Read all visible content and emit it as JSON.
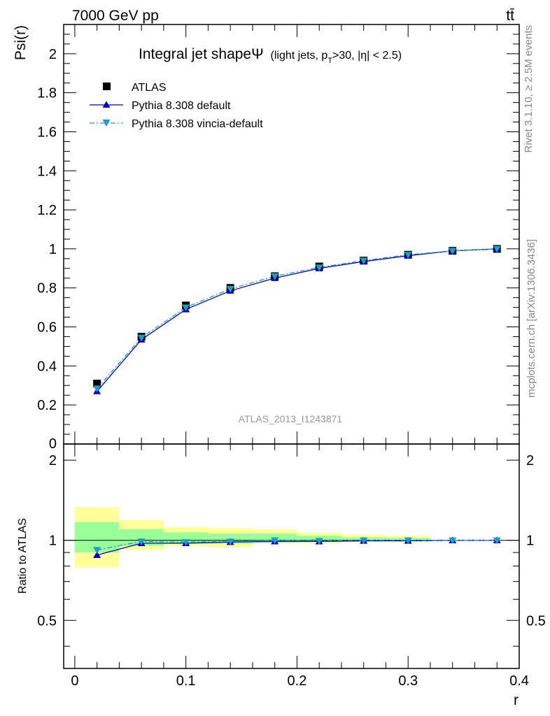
{
  "header": {
    "energy_label": "7000 GeV pp",
    "process_label": "tt̄"
  },
  "side_labels": {
    "rivet": "Rivet 3.1.10, ≥ 2.5M events",
    "mcplots": "mcplots.cern.ch [arXiv:1306.3436]"
  },
  "watermark": "ATLAS_2013_I1243871",
  "chart_data": [
    {
      "type": "scatter",
      "panel": "main",
      "title": "Integral jet shape",
      "title_symbol": "Ψ",
      "title_sub": {
        "a": "(light jets, p",
        "b": "T",
        "c": ">30, |η| < 2.5)"
      },
      "ylabel": "Psi(r)",
      "xlim": [
        -0.01,
        0.4
      ],
      "ylim": [
        0,
        2.15
      ],
      "yticks": [
        0.2,
        0.4,
        0.6,
        0.8,
        1,
        1.2,
        1.4,
        1.6,
        1.8,
        2
      ],
      "ytick_labels": [
        "0.2",
        "0.4",
        "0.6",
        "0.8",
        "1",
        "1.2",
        "1.4",
        "1.6",
        "1.8",
        "2"
      ],
      "ylabel_zero": "0",
      "legend": {
        "placement": "top-left",
        "entries": [
          "ATLAS",
          "Pythia 8.308 default",
          "Pythia 8.308 vincia-default"
        ]
      },
      "x": [
        0.02,
        0.06,
        0.1,
        0.14,
        0.18,
        0.22,
        0.26,
        0.3,
        0.34,
        0.38
      ],
      "series": [
        {
          "name": "ATLAS",
          "marker": "square",
          "color": "#000000",
          "values": [
            0.31,
            0.55,
            0.71,
            0.8,
            0.86,
            0.91,
            0.94,
            0.97,
            0.99,
            1.0
          ]
        },
        {
          "name": "Pythia 8.308 default",
          "marker": "triangle-up",
          "line": "solid",
          "color": "#0000cc",
          "values": [
            0.27,
            0.535,
            0.69,
            0.785,
            0.85,
            0.9,
            0.935,
            0.965,
            0.99,
            1.0
          ]
        },
        {
          "name": "Pythia 8.308 vincia-default",
          "marker": "triangle-down",
          "line": "dashdot",
          "color": "#1a9ec2",
          "values": [
            0.285,
            0.545,
            0.7,
            0.795,
            0.86,
            0.905,
            0.94,
            0.97,
            0.99,
            1.0
          ]
        }
      ]
    },
    {
      "type": "scatter",
      "panel": "ratio",
      "ylabel": "Ratio to ATLAS",
      "xlabel": "r",
      "xlim": [
        -0.01,
        0.4
      ],
      "ylim": [
        0.33,
        2.3
      ],
      "xticks": [
        0,
        0.1,
        0.2,
        0.3,
        0.4
      ],
      "xtick_labels": [
        "0",
        "0.1",
        "0.2",
        "0.3",
        "0.4"
      ],
      "yticks": [
        0.5,
        1,
        2
      ],
      "ytick_labels": [
        "0.5",
        "1",
        "2"
      ],
      "bands": {
        "x_edges": [
          0.0,
          0.04,
          0.08,
          0.12,
          0.16,
          0.2,
          0.24,
          0.28,
          0.32
        ],
        "yellow": [
          [
            0.79,
            1.33
          ],
          [
            0.92,
            1.19
          ],
          [
            0.95,
            1.12
          ],
          [
            0.94,
            1.11
          ],
          [
            0.97,
            1.1
          ],
          [
            0.97,
            1.07
          ],
          [
            0.985,
            1.05
          ],
          [
            0.985,
            1.04
          ]
        ],
        "green": [
          [
            0.9,
            1.17
          ],
          [
            0.955,
            1.1
          ],
          [
            0.97,
            1.07
          ],
          [
            0.97,
            1.06
          ],
          [
            0.98,
            1.06
          ],
          [
            0.985,
            1.04
          ],
          [
            0.99,
            1.025
          ],
          [
            0.99,
            1.02
          ]
        ],
        "colors": {
          "yellow": "#ffff99",
          "green": "#99ff99"
        }
      },
      "x": [
        0.02,
        0.06,
        0.1,
        0.14,
        0.18,
        0.22,
        0.26,
        0.3,
        0.34,
        0.38
      ],
      "series": [
        {
          "name": "Pythia 8.308 default",
          "marker": "triangle-up",
          "line": "solid",
          "color": "#0000cc",
          "values": [
            0.88,
            0.975,
            0.975,
            0.985,
            0.99,
            0.99,
            0.995,
            0.995,
            1.0,
            1.0
          ]
        },
        {
          "name": "Pythia 8.308 vincia-default",
          "marker": "triangle-down",
          "line": "dashdot",
          "color": "#1a9ec2",
          "values": [
            0.92,
            0.99,
            0.985,
            0.99,
            1.0,
            0.995,
            1.0,
            1.0,
            1.0,
            1.0
          ]
        }
      ]
    }
  ]
}
